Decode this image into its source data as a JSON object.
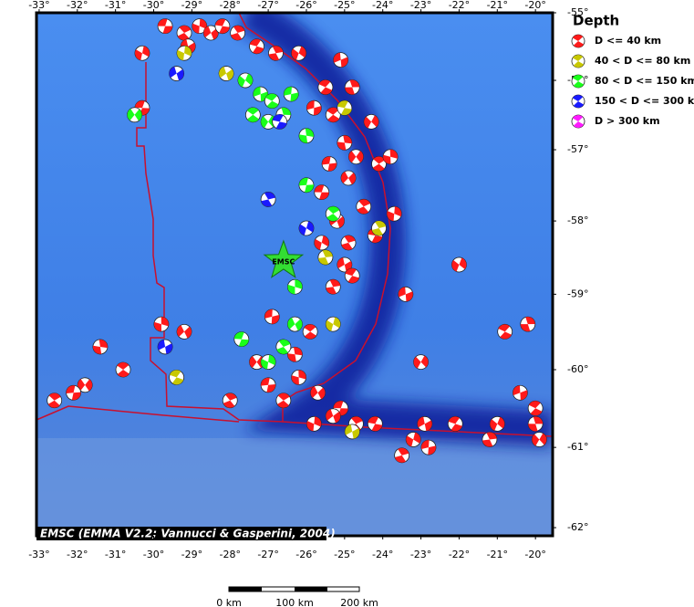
{
  "map": {
    "legend": {
      "title": "Depth",
      "entries": [
        {
          "label": "D <= 40 km",
          "color": "#ff1a1a"
        },
        {
          "label": "40 < D <= 80 km",
          "color": "#c8c800"
        },
        {
          "label": "80 < D <= 150 km",
          "color": "#1aff1a"
        },
        {
          "label": "150 < D <= 300 km",
          "color": "#1a1aff"
        },
        {
          "label": "D > 300 km",
          "color": "#ff1aff"
        }
      ]
    },
    "credit": "EMSC (EMMA V2.2; Vannucci & Gasperini, 2004)",
    "epicenter": {
      "label": "EMSC",
      "lon": -26.6,
      "lat": -58.55
    },
    "scale_bar": [
      "0 km",
      "100 km",
      "200 km"
    ],
    "xlim": [
      -33.07,
      -19.55
    ],
    "ylim": [
      -55.0,
      -62.1
    ],
    "xticks": [
      {
        "value": -33,
        "label": "-33°"
      },
      {
        "value": -32,
        "label": "-32°"
      },
      {
        "value": -31,
        "label": "-31°"
      },
      {
        "value": -30,
        "label": "-30°"
      },
      {
        "value": -29,
        "label": "-29°"
      },
      {
        "value": -28,
        "label": "-28°"
      },
      {
        "value": -27,
        "label": "-27°"
      },
      {
        "value": -26,
        "label": "-26°"
      },
      {
        "value": -25,
        "label": "-25°"
      },
      {
        "value": -24,
        "label": "-24°"
      },
      {
        "value": -23,
        "label": "-23°"
      },
      {
        "value": -22,
        "label": "-22°"
      },
      {
        "value": -21,
        "label": "-21°"
      },
      {
        "value": -20,
        "label": "-20°"
      }
    ],
    "yticks": [
      {
        "value": -55,
        "label": "-55°"
      },
      {
        "value": -56,
        "label": "-56°"
      },
      {
        "value": -57,
        "label": "-57°"
      },
      {
        "value": -58,
        "label": "-58°"
      },
      {
        "value": -59,
        "label": "-59°"
      },
      {
        "value": -60,
        "label": "-60°"
      },
      {
        "value": -61,
        "label": "-61°"
      },
      {
        "value": -62,
        "label": "-62°"
      }
    ],
    "events": [
      {
        "lon": -29.7,
        "lat": -55.2,
        "class": 0
      },
      {
        "lon": -29.2,
        "lat": -55.3,
        "class": 0
      },
      {
        "lon": -28.8,
        "lat": -55.2,
        "class": 0
      },
      {
        "lon": -28.5,
        "lat": -55.3,
        "class": 0
      },
      {
        "lon": -28.2,
        "lat": -55.2,
        "class": 0
      },
      {
        "lon": -27.8,
        "lat": -55.3,
        "class": 0
      },
      {
        "lon": -30.3,
        "lat": -55.6,
        "class": 0
      },
      {
        "lon": -29.1,
        "lat": -55.5,
        "class": 0
      },
      {
        "lon": -27.3,
        "lat": -55.5,
        "class": 0
      },
      {
        "lon": -26.8,
        "lat": -55.6,
        "class": 0
      },
      {
        "lon": -26.2,
        "lat": -55.6,
        "class": 0
      },
      {
        "lon": -25.1,
        "lat": -55.7,
        "class": 0
      },
      {
        "lon": -25.5,
        "lat": -56.1,
        "class": 0
      },
      {
        "lon": -24.8,
        "lat": -56.1,
        "class": 0
      },
      {
        "lon": -24.3,
        "lat": -56.6,
        "class": 0
      },
      {
        "lon": -25.8,
        "lat": -56.4,
        "class": 0
      },
      {
        "lon": -25.3,
        "lat": -56.5,
        "class": 0
      },
      {
        "lon": -25.0,
        "lat": -56.9,
        "class": 0
      },
      {
        "lon": -24.7,
        "lat": -57.1,
        "class": 0
      },
      {
        "lon": -25.4,
        "lat": -57.2,
        "class": 0
      },
      {
        "lon": -24.1,
        "lat": -57.2,
        "class": 0
      },
      {
        "lon": -23.8,
        "lat": -57.1,
        "class": 0
      },
      {
        "lon": -24.9,
        "lat": -57.4,
        "class": 0
      },
      {
        "lon": -25.6,
        "lat": -57.6,
        "class": 0
      },
      {
        "lon": -24.5,
        "lat": -57.8,
        "class": 0
      },
      {
        "lon": -23.7,
        "lat": -57.9,
        "class": 0
      },
      {
        "lon": -25.2,
        "lat": -58.0,
        "class": 0
      },
      {
        "lon": -24.2,
        "lat": -58.2,
        "class": 0
      },
      {
        "lon": -24.9,
        "lat": -58.3,
        "class": 0
      },
      {
        "lon": -25.6,
        "lat": -58.3,
        "class": 0
      },
      {
        "lon": -25.0,
        "lat": -58.6,
        "class": 0
      },
      {
        "lon": -24.8,
        "lat": -58.75,
        "class": 0
      },
      {
        "lon": -25.3,
        "lat": -58.9,
        "class": 0
      },
      {
        "lon": -22.0,
        "lat": -58.6,
        "class": 0
      },
      {
        "lon": -23.4,
        "lat": -59.0,
        "class": 0
      },
      {
        "lon": -20.8,
        "lat": -59.5,
        "class": 0
      },
      {
        "lon": -20.2,
        "lat": -59.4,
        "class": 0
      },
      {
        "lon": -23.0,
        "lat": -59.9,
        "class": 0
      },
      {
        "lon": -26.9,
        "lat": -59.3,
        "class": 0
      },
      {
        "lon": -25.9,
        "lat": -59.5,
        "class": 0
      },
      {
        "lon": -26.3,
        "lat": -59.8,
        "class": 0
      },
      {
        "lon": -27.3,
        "lat": -59.9,
        "class": 0
      },
      {
        "lon": -27.0,
        "lat": -60.2,
        "class": 0
      },
      {
        "lon": -26.6,
        "lat": -60.4,
        "class": 0
      },
      {
        "lon": -26.2,
        "lat": -60.1,
        "class": 0
      },
      {
        "lon": -25.7,
        "lat": -60.3,
        "class": 0
      },
      {
        "lon": -25.1,
        "lat": -60.5,
        "class": 0
      },
      {
        "lon": -24.7,
        "lat": -60.7,
        "class": 0
      },
      {
        "lon": -25.8,
        "lat": -60.7,
        "class": 0
      },
      {
        "lon": -25.3,
        "lat": -60.6,
        "class": 0
      },
      {
        "lon": -24.2,
        "lat": -60.7,
        "class": 0
      },
      {
        "lon": -23.5,
        "lat": -61.1,
        "class": 0
      },
      {
        "lon": -23.2,
        "lat": -60.9,
        "class": 0
      },
      {
        "lon": -22.9,
        "lat": -60.7,
        "class": 0
      },
      {
        "lon": -22.1,
        "lat": -60.7,
        "class": 0
      },
      {
        "lon": -21.2,
        "lat": -60.9,
        "class": 0
      },
      {
        "lon": -21.0,
        "lat": -60.7,
        "class": 0
      },
      {
        "lon": -20.4,
        "lat": -60.3,
        "class": 0
      },
      {
        "lon": -20.0,
        "lat": -60.5,
        "class": 0
      },
      {
        "lon": -20.0,
        "lat": -60.7,
        "class": 0
      },
      {
        "lon": -19.9,
        "lat": -60.9,
        "class": 0
      },
      {
        "lon": -22.8,
        "lat": -61.0,
        "class": 0
      },
      {
        "lon": -30.8,
        "lat": -60.0,
        "class": 0
      },
      {
        "lon": -31.4,
        "lat": -59.7,
        "class": 0
      },
      {
        "lon": -31.8,
        "lat": -60.2,
        "class": 0
      },
      {
        "lon": -32.1,
        "lat": -60.3,
        "class": 0
      },
      {
        "lon": -32.6,
        "lat": -60.4,
        "class": 0
      },
      {
        "lon": -29.8,
        "lat": -59.4,
        "class": 0
      },
      {
        "lon": -29.2,
        "lat": -59.5,
        "class": 0
      },
      {
        "lon": -30.3,
        "lat": -56.4,
        "class": 0
      },
      {
        "lon": -28.0,
        "lat": -60.4,
        "class": 0
      },
      {
        "lon": -29.2,
        "lat": -55.6,
        "class": 1
      },
      {
        "lon": -28.1,
        "lat": -55.9,
        "class": 1
      },
      {
        "lon": -25.0,
        "lat": -56.4,
        "class": 1
      },
      {
        "lon": -24.1,
        "lat": -58.1,
        "class": 1
      },
      {
        "lon": -25.3,
        "lat": -59.4,
        "class": 1
      },
      {
        "lon": -24.8,
        "lat": -60.8,
        "class": 1
      },
      {
        "lon": -29.4,
        "lat": -60.1,
        "class": 1
      },
      {
        "lon": -25.5,
        "lat": -58.5,
        "class": 1
      },
      {
        "lon": -27.6,
        "lat": -56.0,
        "class": 2
      },
      {
        "lon": -27.2,
        "lat": -56.2,
        "class": 2
      },
      {
        "lon": -26.9,
        "lat": -56.3,
        "class": 2
      },
      {
        "lon": -26.6,
        "lat": -56.5,
        "class": 2
      },
      {
        "lon": -27.0,
        "lat": -56.6,
        "class": 2
      },
      {
        "lon": -26.4,
        "lat": -56.2,
        "class": 2
      },
      {
        "lon": -27.4,
        "lat": -56.5,
        "class": 2
      },
      {
        "lon": -26.0,
        "lat": -56.8,
        "class": 2
      },
      {
        "lon": -30.5,
        "lat": -56.5,
        "class": 2
      },
      {
        "lon": -26.0,
        "lat": -57.5,
        "class": 2
      },
      {
        "lon": -25.3,
        "lat": -57.9,
        "class": 2
      },
      {
        "lon": -26.3,
        "lat": -58.9,
        "class": 2
      },
      {
        "lon": -26.3,
        "lat": -59.4,
        "class": 2
      },
      {
        "lon": -27.7,
        "lat": -59.6,
        "class": 2
      },
      {
        "lon": -26.6,
        "lat": -59.7,
        "class": 2
      },
      {
        "lon": -27.0,
        "lat": -59.9,
        "class": 2
      },
      {
        "lon": -29.4,
        "lat": -55.9,
        "class": 3
      },
      {
        "lon": -26.7,
        "lat": -56.6,
        "class": 3
      },
      {
        "lon": -27.0,
        "lat": -57.7,
        "class": 3
      },
      {
        "lon": -26.0,
        "lat": -58.1,
        "class": 3
      },
      {
        "lon": -29.7,
        "lat": -59.7,
        "class": 3
      }
    ]
  }
}
